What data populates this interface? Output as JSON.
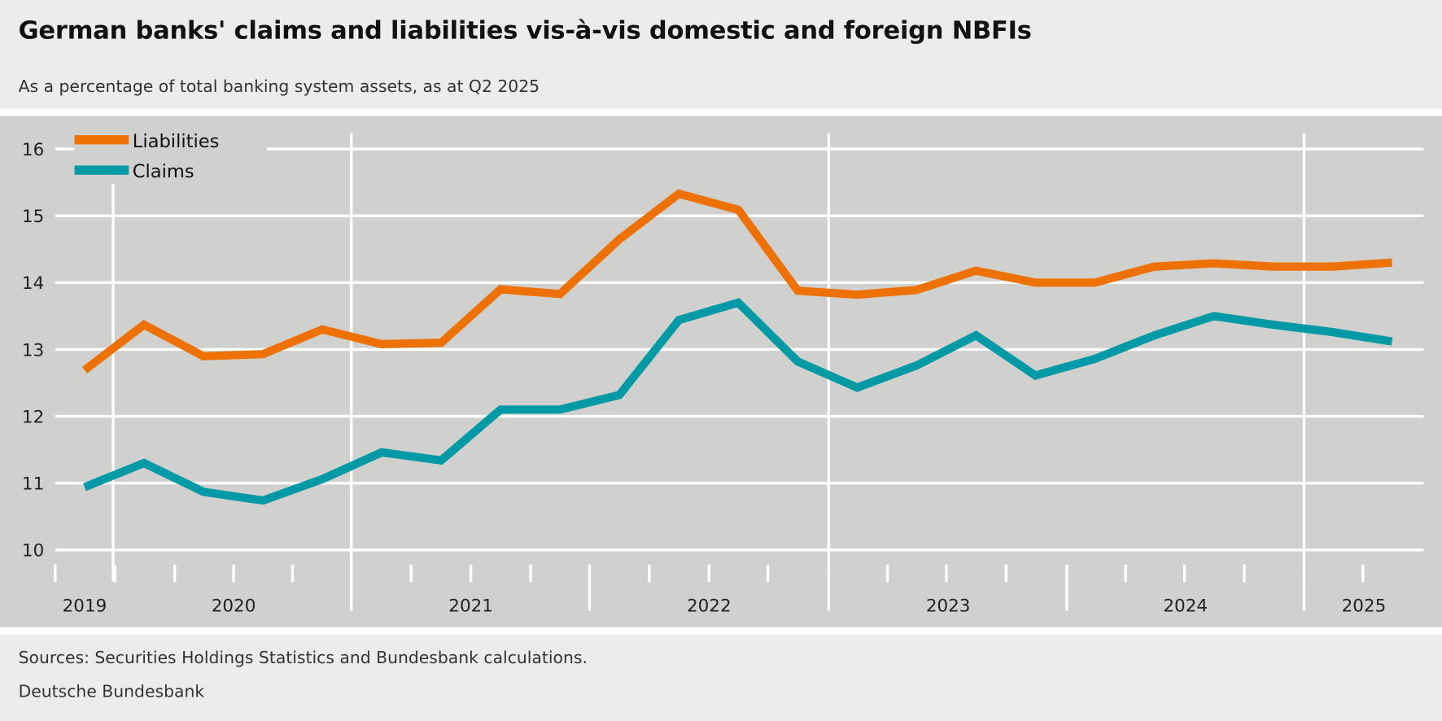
{
  "header": {
    "title": "German banks' claims and liabilities vis-à-vis domestic and foreign NBFIs",
    "subtitle": "As a percentage of total banking system assets, as at Q2 2025"
  },
  "footer": {
    "sources": "Sources: Securities Holdings Statistics and Bundesbank calculations.",
    "publisher": "Deutsche Bundesbank"
  },
  "chart_data": {
    "type": "line",
    "title": "German banks' claims and liabilities vis-à-vis domestic and foreign NBFIs",
    "subtitle": "As a percentage of total banking system assets, as at Q2 2025",
    "x": [
      "2019 Q4",
      "2020 Q1",
      "2020 Q2",
      "2020 Q3",
      "2020 Q4",
      "2021 Q1",
      "2021 Q2",
      "2021 Q3",
      "2021 Q4",
      "2022 Q1",
      "2022 Q2",
      "2022 Q3",
      "2022 Q4",
      "2023 Q1",
      "2023 Q2",
      "2023 Q3",
      "2023 Q4",
      "2024 Q1",
      "2024 Q2",
      "2024 Q3",
      "2024 Q4",
      "2025 Q1",
      "2025 Q2"
    ],
    "x_tick_labels": [
      "2019",
      "2020",
      "2021",
      "2022",
      "2023",
      "2024",
      "2025"
    ],
    "y_ticks": [
      10,
      11,
      12,
      13,
      14,
      15,
      16
    ],
    "ylim": [
      10,
      16
    ],
    "grid": true,
    "legend_position": "top-left",
    "series": [
      {
        "name": "Liabilities",
        "color": "#ee7203",
        "values": [
          12.69,
          13.37,
          12.9,
          12.93,
          13.3,
          13.08,
          13.1,
          13.9,
          13.83,
          14.65,
          15.33,
          15.09,
          13.88,
          13.82,
          13.89,
          14.18,
          14.0,
          14.0,
          14.24,
          14.29,
          14.24,
          14.24,
          14.3
        ]
      },
      {
        "name": "Claims",
        "color": "#0099a6",
        "values": [
          10.94,
          11.3,
          10.87,
          10.74,
          11.06,
          11.46,
          11.34,
          12.1,
          12.1,
          12.32,
          13.44,
          13.7,
          12.82,
          12.43,
          12.76,
          13.21,
          12.61,
          12.86,
          13.21,
          13.5,
          13.37,
          13.26,
          13.12
        ]
      }
    ]
  }
}
